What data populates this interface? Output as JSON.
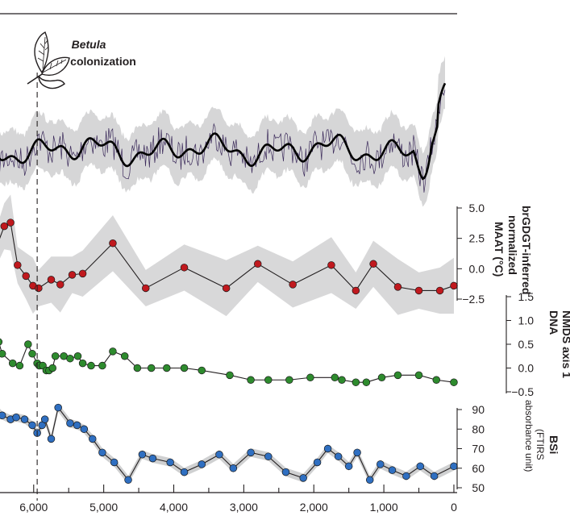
{
  "chart_data": {
    "type": "line",
    "x_axis": {
      "reversed": true,
      "range": [
        -150,
        6550
      ],
      "ticks": [
        6000,
        5000,
        4000,
        3000,
        2000,
        1000,
        0
      ],
      "tick_labels": [
        "6,000",
        "5,000",
        "4,000",
        "3,000",
        "2,000",
        "1,000",
        "0"
      ]
    },
    "event": {
      "x": 5950,
      "label_italic": "Betula",
      "label": "colonization",
      "icon": "birch-leaf-icon"
    },
    "panels": [
      {
        "id": "dna",
        "title_lines": [
          "DNA",
          "NMDS axis 1"
        ],
        "ylim": [
          -0.5,
          1.5
        ],
        "ticks": [
          1.5,
          1.0,
          0.5,
          0.0,
          -0.5
        ],
        "tick_labels": [
          "1.5",
          "1.0",
          "0.5",
          "0.0",
          "−0.5"
        ],
        "color": "#2e8b2e",
        "x": [
          6550,
          6500,
          6450,
          6300,
          6200,
          6080,
          6020,
          5950,
          5920,
          5870,
          5820,
          5780,
          5730,
          5690,
          5570,
          5480,
          5370,
          5300,
          5180,
          5020,
          4870,
          4700,
          4520,
          4320,
          4100,
          3850,
          3600,
          3200,
          2900,
          2650,
          2350,
          2050,
          1700,
          1600,
          1400,
          1250,
          1030,
          800,
          500,
          250,
          0
        ],
        "y": [
          0.8,
          0.55,
          0.3,
          0.1,
          0.05,
          0.5,
          0.3,
          0.1,
          0.05,
          0.05,
          -0.05,
          -0.05,
          0.0,
          0.25,
          0.25,
          0.2,
          0.25,
          0.1,
          0.05,
          0.05,
          0.35,
          0.25,
          0.0,
          0.0,
          0.0,
          0.0,
          -0.05,
          -0.15,
          -0.25,
          -0.25,
          -0.25,
          -0.2,
          -0.2,
          -0.25,
          -0.3,
          -0.3,
          -0.2,
          -0.15,
          -0.15,
          -0.25,
          -0.3
        ]
      },
      {
        "id": "bsi",
        "title_lines": [
          "BSi",
          "(FTIRS",
          "absorbance unit)"
        ],
        "ylim": [
          50,
          90
        ],
        "ticks": [
          90,
          80,
          70,
          60,
          50
        ],
        "tick_labels": [
          "90",
          "80",
          "70",
          "60",
          "50"
        ],
        "color": "#2f6fc1",
        "x": [
          6550,
          6450,
          6330,
          6250,
          6130,
          6020,
          5950,
          5880,
          5840,
          5750,
          5650,
          5480,
          5380,
          5280,
          5160,
          5020,
          4850,
          4650,
          4450,
          4300,
          4050,
          3850,
          3600,
          3350,
          3150,
          2900,
          2650,
          2400,
          2150,
          1950,
          1800,
          1650,
          1500,
          1380,
          1200,
          1050,
          880,
          680,
          480,
          280,
          0
        ],
        "y": [
          91,
          87,
          85,
          86,
          85,
          82,
          78,
          82,
          85,
          75,
          91,
          83,
          82,
          80,
          75,
          68,
          63,
          54,
          67,
          65,
          63,
          58,
          62,
          67,
          60,
          68,
          66,
          58,
          55,
          63,
          70,
          66,
          61,
          68,
          54,
          62,
          59,
          56,
          61,
          56,
          61
        ]
      },
      {
        "id": "maat",
        "title_lines": [
          "brGDGT-inferred",
          "normalized",
          "MAAT (°C)"
        ],
        "ylim": [
          -2.5,
          5.0
        ],
        "ticks": [
          5.0,
          2.5,
          0.0,
          -2.5
        ],
        "tick_labels": [
          "5.0",
          "2.5",
          "0.0",
          "−2.5"
        ],
        "color": "#c0191e",
        "x": [
          6550,
          6420,
          6330,
          6230,
          6110,
          6010,
          5930,
          5750,
          5620,
          5450,
          5300,
          4870,
          4400,
          3850,
          3250,
          2800,
          2300,
          1750,
          1400,
          1150,
          800,
          500,
          200,
          0
        ],
        "y": [
          1.5,
          3.5,
          3.8,
          0.3,
          -0.6,
          -1.4,
          -1.6,
          -0.9,
          -1.3,
          -0.5,
          -0.4,
          2.1,
          -1.6,
          0.1,
          -1.6,
          0.4,
          -1.3,
          0.3,
          -1.8,
          0.4,
          -1.5,
          -1.8,
          -1.8,
          -1.4
        ]
      },
      {
        "id": "top",
        "ylim": [
          0,
          1
        ],
        "color": "#000000"
      }
    ]
  }
}
